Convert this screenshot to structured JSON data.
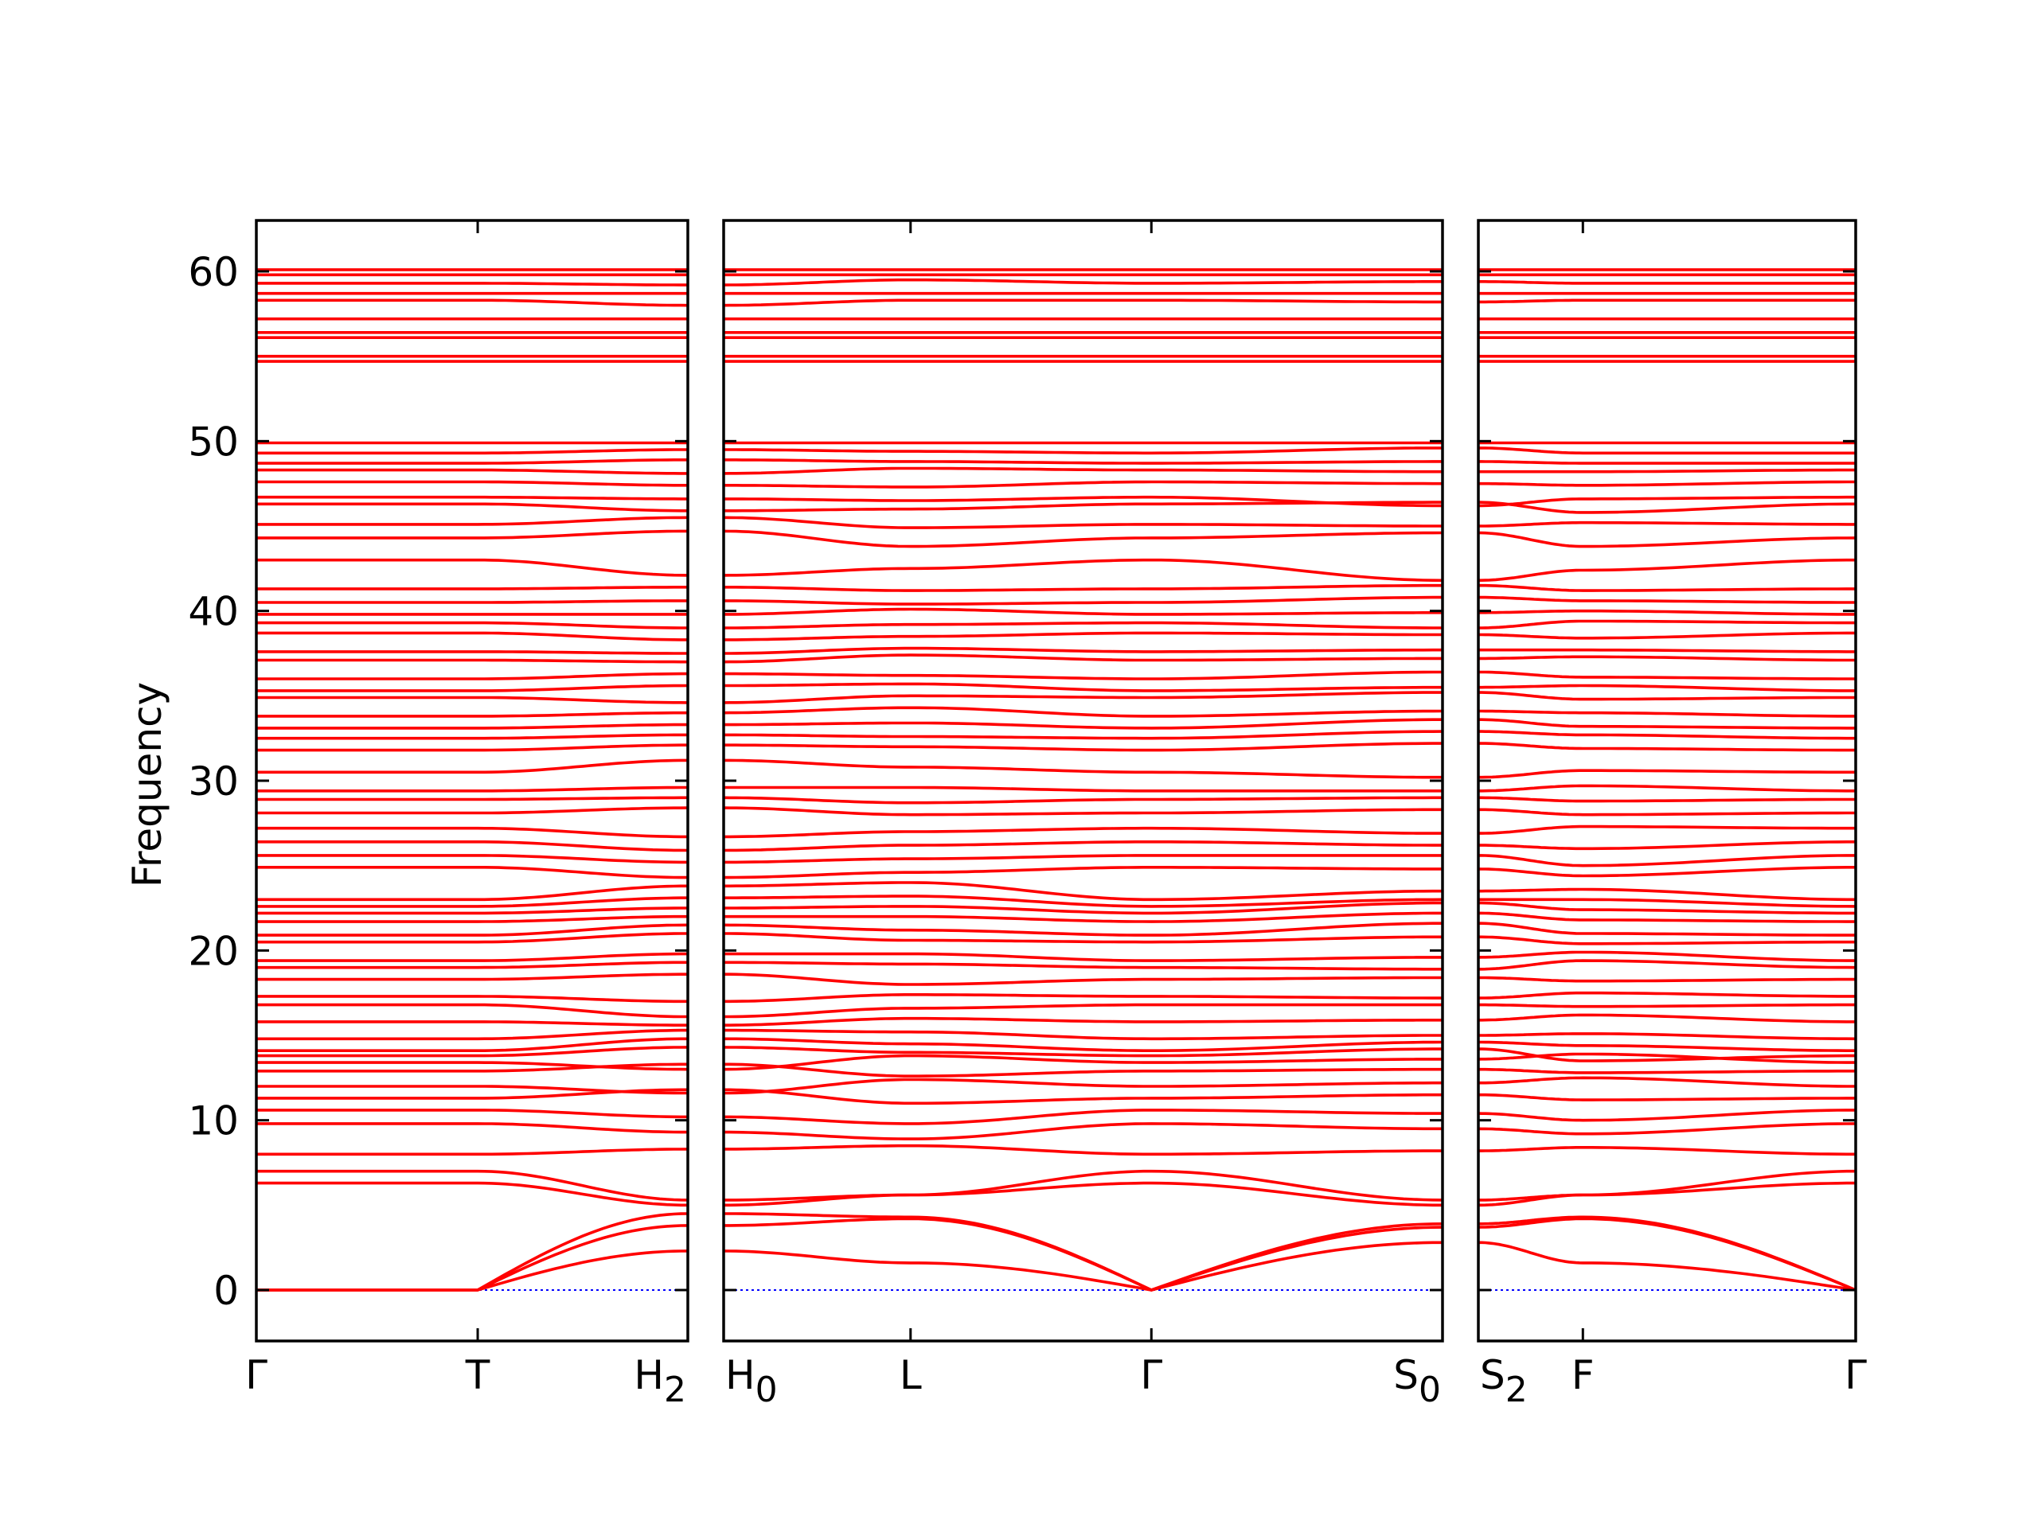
{
  "chart_data": {
    "type": "line",
    "title": "",
    "ylabel": "Frequency",
    "xlabel": "",
    "ylim": [
      -3,
      63
    ],
    "yticks": [
      0,
      10,
      20,
      30,
      40,
      50,
      60
    ],
    "grid": false,
    "colors": {
      "bands": "#ff0000",
      "zero_line": "#0000ff",
      "axes": "#000000"
    },
    "point_order": [
      "Γ",
      "T",
      "H",
      "L",
      "S",
      "F"
    ],
    "panels": [
      {
        "path": [
          "Γ",
          "T",
          "H"
        ],
        "tick_positions": [
          0,
          0.513,
          1
        ],
        "labels": [
          {
            "main": "Γ",
            "sub": ""
          },
          {
            "main": "T",
            "sub": ""
          },
          {
            "main": "H",
            "sub": "2"
          }
        ]
      },
      {
        "path": [
          "H",
          "L",
          "Γ",
          "S"
        ],
        "tick_positions": [
          0,
          0.26,
          0.595,
          1
        ],
        "labels": [
          {
            "main": "H",
            "sub": "0"
          },
          {
            "main": "L",
            "sub": ""
          },
          {
            "main": "Γ",
            "sub": ""
          },
          {
            "main": "S",
            "sub": "0"
          }
        ]
      },
      {
        "path": [
          "S",
          "F",
          "Γ"
        ],
        "tick_positions": [
          0,
          0.277,
          1
        ],
        "labels": [
          {
            "main": "S",
            "sub": "2"
          },
          {
            "main": "F",
            "sub": ""
          },
          {
            "main": "Γ",
            "sub": ""
          }
        ]
      }
    ],
    "bands": [
      [
        0,
        0,
        2.3,
        1.6,
        2.8,
        1.6
      ],
      [
        0,
        0,
        3.8,
        4.2,
        3.7,
        4.2
      ],
      [
        0,
        0,
        4.5,
        4.3,
        3.9,
        4.3
      ],
      [
        6.3,
        6.3,
        5.0,
        5.6,
        5.0,
        5.6
      ],
      [
        7.0,
        7.0,
        5.3,
        5.6,
        5.3,
        5.6
      ],
      [
        8.0,
        8.0,
        8.3,
        8.5,
        8.2,
        8.4
      ],
      [
        9.8,
        9.8,
        9.3,
        8.9,
        9.5,
        9.2
      ],
      [
        10.6,
        10.6,
        10.2,
        9.8,
        10.4,
        10.0
      ],
      [
        11.3,
        11.3,
        11.8,
        11.0,
        11.5,
        11.2
      ],
      [
        12.0,
        12.0,
        11.6,
        12.4,
        12.2,
        12.5
      ],
      [
        12.9,
        12.9,
        13.3,
        12.6,
        13.0,
        12.8
      ],
      [
        13.4,
        13.4,
        13.0,
        13.8,
        13.6,
        13.9
      ],
      [
        13.8,
        13.8,
        14.3,
        14.0,
        14.2,
        13.5
      ],
      [
        14.1,
        14.1,
        14.8,
        14.5,
        14.6,
        14.4
      ],
      [
        14.8,
        14.8,
        15.3,
        15.2,
        15.0,
        15.1
      ],
      [
        15.8,
        15.8,
        15.6,
        16.0,
        15.9,
        16.2
      ],
      [
        16.8,
        16.8,
        16.1,
        16.6,
        16.8,
        16.7
      ],
      [
        17.3,
        17.3,
        17.0,
        17.4,
        17.2,
        17.5
      ],
      [
        18.3,
        18.3,
        18.6,
        18.0,
        18.4,
        18.2
      ],
      [
        19.0,
        19.0,
        19.3,
        19.2,
        18.9,
        19.4
      ],
      [
        19.4,
        19.4,
        19.8,
        19.8,
        19.6,
        19.9
      ],
      [
        20.5,
        20.5,
        21.0,
        20.6,
        20.8,
        20.4
      ],
      [
        20.9,
        20.9,
        21.5,
        21.2,
        21.6,
        21.0
      ],
      [
        21.7,
        21.7,
        22.0,
        22.0,
        22.2,
        21.8
      ],
      [
        22.2,
        22.2,
        22.5,
        22.6,
        22.8,
        22.4
      ],
      [
        22.6,
        22.6,
        23.1,
        23.2,
        23.0,
        23.0
      ],
      [
        23.0,
        23.0,
        23.8,
        24.0,
        23.5,
        23.6
      ],
      [
        24.9,
        24.9,
        24.3,
        24.6,
        24.8,
        24.4
      ],
      [
        25.6,
        25.6,
        25.2,
        25.4,
        25.6,
        25.0
      ],
      [
        26.4,
        26.4,
        25.9,
        26.2,
        26.2,
        26.0
      ],
      [
        27.2,
        27.2,
        26.7,
        27.0,
        26.9,
        27.3
      ],
      [
        28.1,
        28.1,
        28.4,
        28.0,
        28.3,
        28.0
      ],
      [
        28.9,
        28.9,
        29.0,
        28.7,
        29.0,
        28.8
      ],
      [
        29.4,
        29.4,
        29.6,
        29.6,
        29.4,
        29.7
      ],
      [
        30.5,
        30.5,
        31.2,
        30.8,
        30.2,
        30.6
      ],
      [
        31.8,
        31.8,
        32.1,
        32.0,
        32.2,
        31.9
      ],
      [
        32.5,
        32.5,
        32.7,
        32.6,
        32.9,
        32.7
      ],
      [
        33.1,
        33.1,
        33.3,
        33.4,
        33.6,
        33.2
      ],
      [
        33.8,
        33.8,
        34.0,
        34.3,
        34.1,
        34.0
      ],
      [
        34.9,
        34.9,
        34.6,
        35.0,
        35.2,
        34.8
      ],
      [
        35.3,
        35.3,
        35.6,
        35.7,
        35.5,
        35.6
      ],
      [
        36.0,
        36.0,
        36.3,
        36.2,
        36.4,
        36.1
      ],
      [
        37.1,
        37.1,
        37.0,
        37.4,
        37.2,
        37.3
      ],
      [
        37.6,
        37.6,
        37.5,
        37.8,
        37.7,
        37.7
      ],
      [
        38.7,
        38.7,
        38.3,
        38.5,
        38.6,
        38.4
      ],
      [
        39.3,
        39.3,
        39.0,
        39.2,
        39.0,
        39.4
      ],
      [
        39.8,
        39.8,
        39.8,
        40.1,
        39.9,
        40.0
      ],
      [
        40.5,
        40.5,
        40.6,
        40.4,
        40.8,
        40.6
      ],
      [
        41.3,
        41.3,
        41.4,
        41.2,
        41.5,
        41.2
      ],
      [
        43.0,
        43.0,
        42.1,
        42.5,
        41.8,
        42.4
      ],
      [
        44.3,
        44.3,
        44.7,
        43.8,
        44.6,
        43.8
      ],
      [
        45.1,
        45.1,
        45.5,
        44.9,
        45.0,
        45.2
      ],
      [
        46.3,
        46.3,
        45.9,
        46.0,
        46.4,
        45.8
      ],
      [
        46.7,
        46.7,
        46.6,
        46.5,
        46.2,
        46.6
      ],
      [
        47.6,
        47.6,
        47.4,
        47.3,
        47.5,
        47.4
      ],
      [
        48.3,
        48.3,
        48.1,
        48.4,
        48.2,
        48.2
      ],
      [
        48.7,
        48.7,
        48.9,
        48.8,
        48.8,
        48.7
      ],
      [
        49.3,
        49.3,
        49.5,
        49.4,
        49.6,
        49.3
      ],
      [
        49.9,
        49.9,
        49.9,
        49.9,
        49.9,
        49.9
      ],
      [
        54.7,
        54.7,
        54.7,
        54.7,
        54.7,
        54.7
      ],
      [
        55.0,
        55.0,
        55.0,
        55.0,
        55.0,
        55.0
      ],
      [
        56.1,
        56.1,
        56.1,
        56.1,
        56.1,
        56.1
      ],
      [
        56.4,
        56.4,
        56.4,
        56.4,
        56.4,
        56.4
      ],
      [
        57.2,
        57.2,
        57.2,
        57.2,
        57.2,
        57.2
      ],
      [
        58.3,
        58.3,
        58.0,
        58.3,
        58.2,
        58.3
      ],
      [
        58.7,
        58.7,
        58.7,
        58.7,
        58.7,
        58.7
      ],
      [
        59.3,
        59.3,
        59.2,
        59.5,
        59.4,
        59.3
      ],
      [
        59.8,
        59.8,
        59.8,
        59.8,
        59.8,
        59.8
      ],
      [
        60.1,
        60.1,
        60.1,
        60.1,
        60.1,
        60.1
      ]
    ]
  }
}
